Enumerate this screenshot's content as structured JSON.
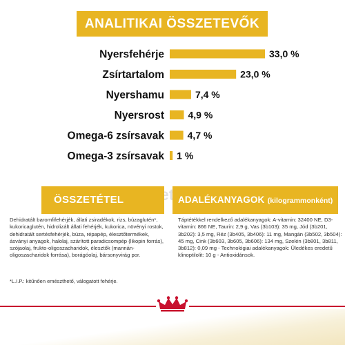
{
  "header": {
    "title": "ANALITIKAI ÖSSZETEVŐK"
  },
  "chart_data": {
    "type": "bar",
    "orientation": "horizontal",
    "categories": [
      "Nyersfehérje",
      "Zsírtartalom",
      "Nyershamu",
      "Nyersrost",
      "Omega-6 zsírsavak",
      "Omega-3 zsírsavak"
    ],
    "values": [
      33.0,
      23.0,
      7.4,
      4.9,
      4.7,
      1.0
    ],
    "value_labels": [
      "33,0 %",
      "23,0 %",
      "7,4 %",
      "4,9 %",
      "4,7 %",
      "1 %"
    ],
    "bar_color": "#e8b522"
  },
  "watermark": "Petissimo",
  "sections": {
    "composition_title": "ÖSSZETÉTEL",
    "additives_title_main": "ADALÉKANYAGOK",
    "additives_title_sub": "(kilogrammonként)"
  },
  "composition_text": "Dehidratált baromfifehérjék, állati zsiradékok, rizs, búzaglutén*, kukoricaglutén, hidrolizált állati fehérjék, kukorica, növényi rostok, dehidratált sertésfehérjék, búza, répapép, élesztőtermékek, ásványi anyagok, halolaj, szárított paradicsompép (likopin forrás), szójaolaj, frukto-oligoszacharidok, élesztők (mannán-oligoszacharidok forrása), borágóolaj, bársonyvirág por.",
  "additives_text": "Táptétékkel rendelkező adalékanyagok: A-vitamin: 32400 NE, D3-vitamin: 866 NE, Taurin: 2,9 g, Vas (3b103): 35 mg, Jód (3b201, 3b202): 3,5 mg, Réz (3b405, 3b406): 11 mg, Mangán (3b502, 3b504): 45 mg, Cink (3b603, 3b605, 3b606): 134 mg, Szelén (3b801, 3b811, 3b812): 0,09 mg - Technológiai adalékanyagok: Üledékes eredetű klinoptilolit: 10 g - Antioxidánsok.",
  "footnote": "*L.I.P.: kitűnően emészthető, válogatott fehérje.",
  "colors": {
    "accent": "#e8b522",
    "brand_red": "#c8102e"
  },
  "icons": {
    "logo": "royal-canin-crown-icon"
  }
}
